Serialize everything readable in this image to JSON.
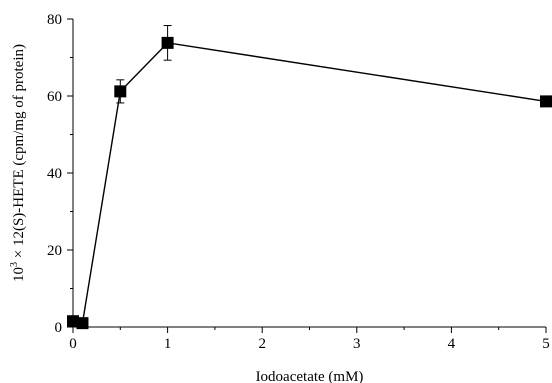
{
  "chart_data": {
    "type": "scatter",
    "title": "",
    "xlabel": "Iodoacetate (mM)",
    "ylabel_prefix": "10",
    "ylabel_sup": "3",
    "ylabel_rest": " × 12(S)-HETE (cpm/mg of protein)",
    "xlim": [
      0,
      5
    ],
    "ylim": [
      0,
      80
    ],
    "x_ticks": [
      0,
      1,
      2,
      3,
      4,
      5
    ],
    "y_ticks": [
      0,
      20,
      40,
      60,
      80
    ],
    "grid": false,
    "marker": "square",
    "connected": true,
    "series": [
      {
        "points": [
          {
            "x": 0,
            "y": 1.5,
            "err": 0.8
          },
          {
            "x": 0.1,
            "y": 1.0,
            "err": 0.5
          },
          {
            "x": 0.5,
            "y": 61.2,
            "err": 3.0
          },
          {
            "x": 1,
            "y": 73.8,
            "err": 4.5
          },
          {
            "x": 5,
            "y": 58.6,
            "err": 1.2
          }
        ]
      }
    ]
  }
}
